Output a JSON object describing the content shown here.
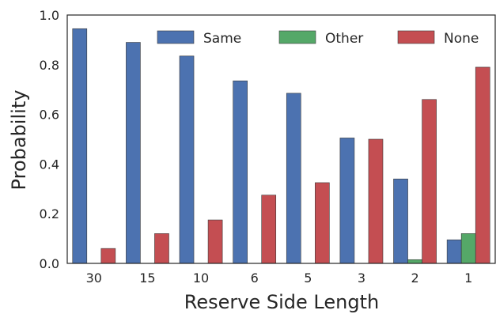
{
  "chart_data": {
    "type": "bar",
    "categories": [
      "30",
      "15",
      "10",
      "6",
      "5",
      "3",
      "2",
      "1"
    ],
    "series": [
      {
        "name": "Same",
        "color": "#4c72b0",
        "values": [
          0.945,
          0.89,
          0.835,
          0.735,
          0.685,
          0.505,
          0.34,
          0.095
        ]
      },
      {
        "name": "Other",
        "color": "#55a868",
        "values": [
          0.0,
          0.0,
          0.0,
          0.0,
          0.0,
          0.0,
          0.015,
          0.12
        ]
      },
      {
        "name": "None",
        "color": "#c44e52",
        "values": [
          0.06,
          0.12,
          0.175,
          0.275,
          0.325,
          0.5,
          0.66,
          0.79
        ]
      }
    ],
    "xlabel": "Reserve Side Length",
    "ylabel": "Probability",
    "ylim": [
      0,
      1.0
    ],
    "yticks": [
      "0.0",
      "0.2",
      "0.4",
      "0.6",
      "0.8",
      "1.0"
    ],
    "grid": false,
    "legend_position": "top-right"
  }
}
